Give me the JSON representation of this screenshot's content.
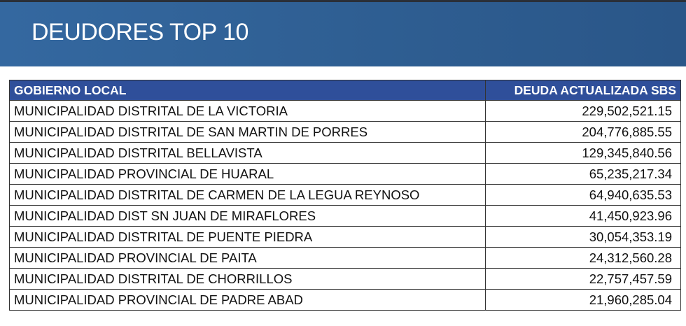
{
  "title": "DEUDORES TOP 10",
  "table": {
    "headers": [
      "GOBIERNO LOCAL",
      "DEUDA ACTUALIZADA SBS"
    ],
    "rows": [
      [
        "MUNICIPALIDAD DISTRITAL DE LA VICTORIA",
        "229,502,521.15"
      ],
      [
        "MUNICIPALIDAD DISTRITAL DE SAN MARTIN DE PORRES",
        "204,776,885.55"
      ],
      [
        "MUNICIPALIDAD DISTRITAL BELLAVISTA",
        "129,345,840.56"
      ],
      [
        "MUNICIPALIDAD PROVINCIAL DE HUARAL",
        "65,235,217.34"
      ],
      [
        "MUNICIPALIDAD DISTRITAL DE CARMEN DE LA LEGUA REYNOSO",
        "64,940,635.53"
      ],
      [
        "MUNICIPALIDAD DIST SN JUAN DE MIRAFLORES",
        "41,450,923.96"
      ],
      [
        "MUNICIPALIDAD DISTRITAL DE PUENTE PIEDRA",
        "30,054,353.19"
      ],
      [
        "MUNICIPALIDAD PROVINCIAL DE PAITA",
        "24,312,560.28"
      ],
      [
        "MUNICIPALIDAD DISTRITAL DE CHORRILLOS",
        "22,757,457.59"
      ],
      [
        "MUNICIPALIDAD PROVINCIAL DE PADRE ABAD",
        "21,960,285.04"
      ]
    ]
  },
  "colors": {
    "banner": "#2f5f93",
    "header": "#2f4f9a"
  }
}
